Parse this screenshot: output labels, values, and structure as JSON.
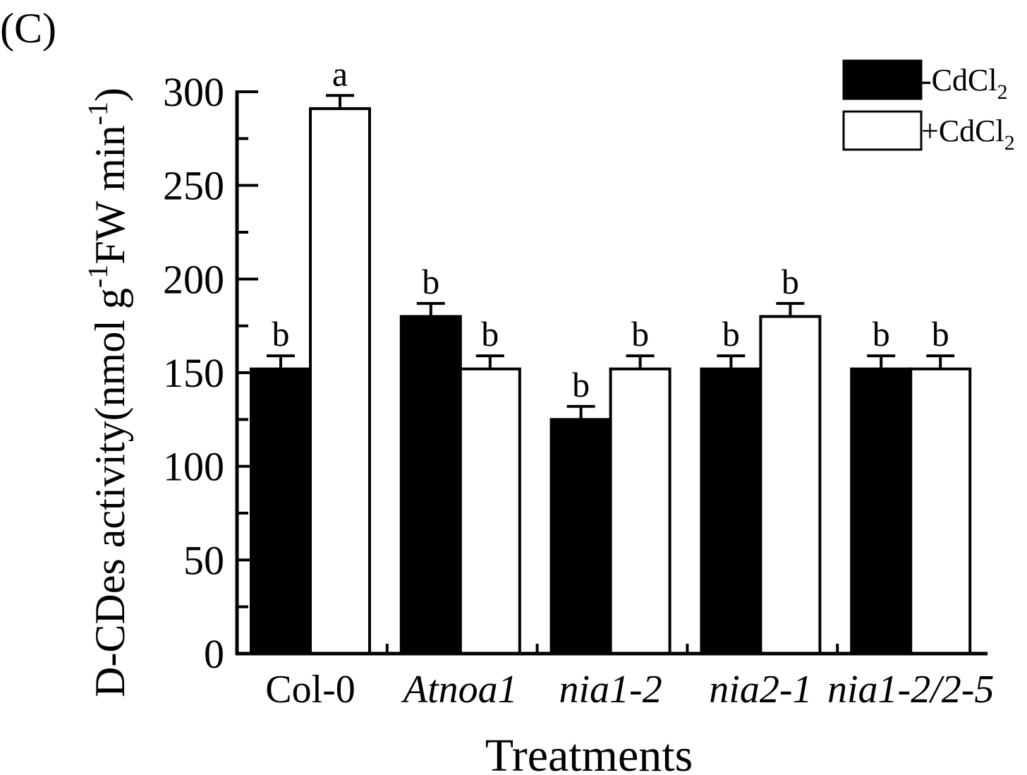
{
  "panel_label": "(C)",
  "chart_data": {
    "type": "bar",
    "title": "",
    "xlabel": "Treatments",
    "ylabel": "D-CDes activity(nmol g-1FW min-1)",
    "ylabel_parts": {
      "base": "D-CDes activity(nmol g",
      "sup1": "-1",
      "mid": "FW min",
      "sup2": "-1",
      "close": ")"
    },
    "categories": [
      "Col-0",
      "Atnoa1",
      "nia1-2",
      "nia2-1",
      "nia1-2/2-5"
    ],
    "category_italic": [
      false,
      true,
      true,
      true,
      true
    ],
    "ylim": [
      0,
      300
    ],
    "yticks": [
      0,
      50,
      100,
      150,
      200,
      250,
      300
    ],
    "legend_position": "top-right",
    "series": [
      {
        "name": "-CdCl2",
        "label_base": "-CdCl",
        "label_sub": "2",
        "fill": "#000000",
        "values": [
          152,
          180,
          125,
          152,
          152
        ],
        "errors": [
          7,
          7,
          7,
          7,
          7
        ],
        "letters": [
          "b",
          "b",
          "b",
          "b",
          "b"
        ]
      },
      {
        "name": "+CdCl2",
        "label_base": "+CdCl",
        "label_sub": "2",
        "fill": "#ffffff",
        "values": [
          291,
          152,
          152,
          180,
          152
        ],
        "errors": [
          7,
          7,
          7,
          7,
          7
        ],
        "letters": [
          "a",
          "b",
          "b",
          "b",
          "b"
        ]
      }
    ]
  }
}
